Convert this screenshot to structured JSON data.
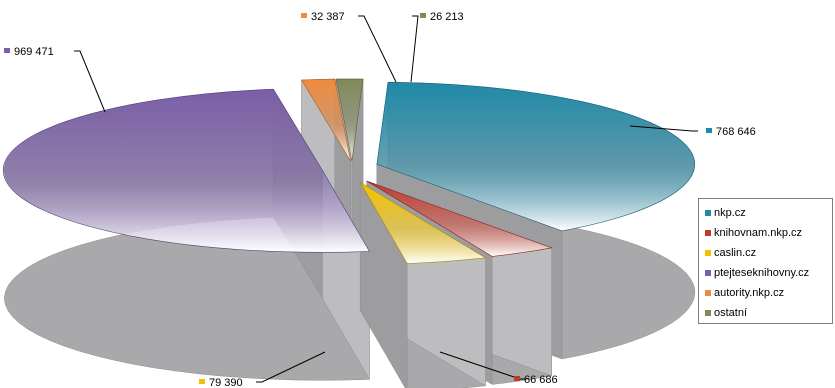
{
  "chart_data": {
    "type": "pie",
    "title": "",
    "categories": [
      "nkp.cz",
      "knihovnam.nkp.cz",
      "caslin.cz",
      "ptejteseknihovny.cz",
      "autority.nkp.cz",
      "ostatní"
    ],
    "values": [
      768646,
      66686,
      79390,
      969471,
      32387,
      26213
    ],
    "value_labels": [
      "768 646",
      "66 686",
      "79 390",
      "969 471",
      "32 387",
      "26 213"
    ],
    "colors": [
      "#1f8aa8",
      "#c0392b",
      "#f2c200",
      "#7a5ea8",
      "#f08a3c",
      "#7f8a5a"
    ],
    "legend_position": "right",
    "style": "3d-exploded"
  }
}
